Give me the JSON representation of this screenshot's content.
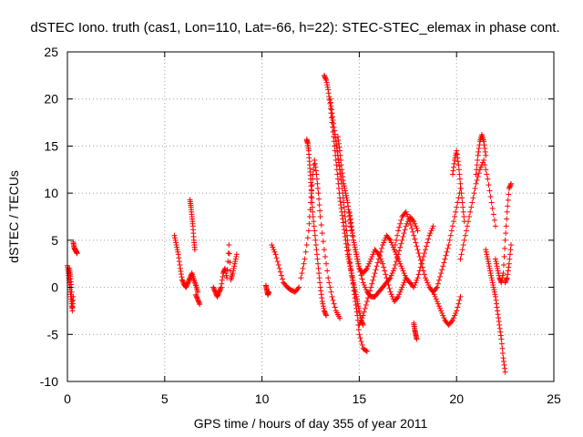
{
  "chart_data": {
    "type": "scatter",
    "title": "dSTEC Iono. truth (cas1, Lon=110, Lat=-66, h=22): STEC-STEC_elemax in phase cont.",
    "xlabel": "GPS time / hours of day 355 of year 2011",
    "ylabel": "dSTEC  / TECUs",
    "xlim": [
      0,
      25
    ],
    "ylim": [
      -10,
      25
    ],
    "xticks": [
      "0",
      "5",
      "10",
      "15",
      "20",
      "25"
    ],
    "yticks": [
      "-10",
      "-5",
      "0",
      "5",
      "10",
      "15",
      "20",
      "25"
    ],
    "grid": true,
    "marker": "+",
    "color": "#ff0000",
    "series": [
      {
        "x": [
          0.0,
          0.05,
          0.1,
          0.15,
          0.2,
          0.25,
          0.3
        ],
        "y": [
          2.3,
          1.5,
          0.5,
          -0.5,
          -1.5,
          -2.5,
          -1.0
        ]
      },
      {
        "x": [
          0.1,
          0.15,
          0.2,
          0.25
        ],
        "y": [
          2.0,
          1.2,
          0.0,
          -2.0
        ]
      },
      {
        "x": [
          0.3,
          0.35,
          0.4,
          0.45,
          0.5
        ],
        "y": [
          4.8,
          4.2,
          4.0,
          3.8,
          3.6
        ]
      },
      {
        "x": [
          5.5,
          5.6,
          5.7,
          5.8,
          5.9,
          6.0,
          6.1,
          6.2,
          6.3,
          6.4,
          6.5,
          6.6,
          6.7
        ],
        "y": [
          5.5,
          4.5,
          3.5,
          2.0,
          0.8,
          0.3,
          0.0,
          0.5,
          1.0,
          1.5,
          0.8,
          0.2,
          -0.5
        ]
      },
      {
        "x": [
          6.3,
          6.35,
          6.4,
          6.45,
          6.5,
          6.55
        ],
        "y": [
          9.3,
          8.5,
          7.5,
          6.5,
          5.0,
          4.0
        ]
      },
      {
        "x": [
          6.6,
          6.7,
          6.8
        ],
        "y": [
          -0.8,
          -1.3,
          -1.8
        ]
      },
      {
        "x": [
          7.5,
          7.6,
          7.7,
          7.8,
          7.9,
          8.0,
          8.1,
          8.2,
          8.3,
          8.4,
          8.5,
          8.6,
          8.7
        ],
        "y": [
          0.0,
          -0.5,
          -1.0,
          -0.5,
          0.0,
          1.5,
          2.0,
          1.0,
          4.5,
          0.8,
          1.5,
          2.5,
          3.5
        ]
      },
      {
        "x": [
          10.2,
          10.25,
          10.3,
          10.35
        ],
        "y": [
          0.2,
          -0.3,
          -0.8,
          -0.5
        ]
      },
      {
        "x": [
          10.5,
          10.7,
          10.9,
          11.1,
          11.3,
          11.5,
          11.7,
          11.9
        ],
        "y": [
          4.5,
          3.5,
          2.0,
          0.5,
          0.0,
          -0.3,
          -0.5,
          0.0
        ]
      },
      {
        "x": [
          12.0,
          12.2,
          12.4,
          12.5,
          12.6,
          12.7,
          12.8,
          12.9,
          13.0,
          13.2,
          13.4,
          13.6,
          13.8,
          14.0
        ],
        "y": [
          1.0,
          3.0,
          6.0,
          9.0,
          11.5,
          13.5,
          12.0,
          10.0,
          7.5,
          4.0,
          1.0,
          -1.0,
          -2.5,
          -3.3
        ]
      },
      {
        "x": [
          12.3,
          12.35,
          12.4,
          12.45,
          12.5,
          12.55,
          12.6,
          12.7,
          12.8,
          12.9,
          13.0,
          13.1,
          13.2,
          13.3
        ],
        "y": [
          15.7,
          15.3,
          14.5,
          13.0,
          11.5,
          10.0,
          8.0,
          6.0,
          4.0,
          2.0,
          0.0,
          -1.5,
          -2.5,
          -3.0
        ]
      },
      {
        "x": [
          13.2,
          13.3,
          13.4,
          13.5,
          13.6,
          13.7,
          13.8,
          13.9,
          14.0,
          14.1,
          14.2,
          14.3,
          14.4,
          14.5,
          14.6,
          14.7,
          14.8,
          14.9,
          15.0,
          15.1,
          15.2
        ],
        "y": [
          22.5,
          22.0,
          21.0,
          19.5,
          17.5,
          15.5,
          13.5,
          11.5,
          9.5,
          8.0,
          6.5,
          5.0,
          3.5,
          2.5,
          1.5,
          0.5,
          -0.5,
          -1.5,
          -2.5,
          -3.5,
          -4.0
        ]
      },
      {
        "x": [
          13.5,
          13.6,
          13.7,
          13.8,
          13.9,
          14.0,
          14.1,
          14.2,
          14.3,
          14.4,
          14.5,
          14.6,
          14.7,
          14.8,
          14.9,
          15.0,
          15.2,
          15.4
        ],
        "y": [
          20.0,
          18.5,
          17.0,
          15.5,
          14.0,
          12.5,
          11.0,
          9.0,
          7.0,
          5.0,
          3.0,
          1.5,
          0.0,
          -1.5,
          -3.0,
          -5.0,
          -6.5,
          -6.8
        ]
      },
      {
        "x": [
          13.9,
          14.0,
          14.1,
          14.2,
          14.3,
          14.4,
          14.5,
          14.6,
          14.8,
          15.0,
          15.2,
          15.4,
          15.6,
          15.8,
          16.0,
          16.2,
          16.4,
          16.6,
          16.8,
          17.0,
          17.2,
          17.4,
          17.6,
          17.8,
          18.0
        ],
        "y": [
          16.0,
          14.5,
          12.5,
          11.0,
          10.0,
          9.0,
          7.5,
          6.0,
          4.0,
          2.0,
          0.5,
          -0.5,
          -1.0,
          -1.0,
          -0.5,
          0.0,
          0.5,
          1.0,
          2.0,
          3.5,
          5.0,
          6.5,
          7.5,
          7.0,
          6.0
        ]
      },
      {
        "x": [
          14.5,
          14.6,
          14.7,
          14.8,
          14.9,
          15.0,
          15.2,
          15.4,
          15.6,
          15.8,
          16.0,
          16.2,
          16.4,
          16.6,
          16.8,
          17.0,
          17.2,
          17.4
        ],
        "y": [
          8.0,
          6.5,
          5.0,
          4.0,
          3.0,
          2.0,
          1.5,
          2.0,
          3.0,
          4.0,
          3.5,
          2.5,
          1.0,
          -0.5,
          -1.5,
          -1.0,
          0.0,
          1.0
        ]
      },
      {
        "x": [
          15.0,
          15.2,
          15.4,
          15.6,
          15.8,
          16.0,
          16.2,
          16.4,
          16.6,
          16.8,
          17.0,
          17.2,
          17.4,
          17.6,
          17.8,
          18.0,
          18.2,
          18.4,
          18.6,
          18.8
        ],
        "y": [
          -4.0,
          -3.0,
          -1.5,
          0.0,
          1.5,
          3.0,
          4.5,
          5.5,
          5.0,
          4.0,
          3.0,
          2.0,
          1.0,
          0.5,
          0.0,
          1.0,
          2.5,
          4.0,
          5.5,
          6.5
        ]
      },
      {
        "x": [
          16.8,
          17.0,
          17.2,
          17.4,
          17.6,
          17.8,
          18.0,
          18.2,
          18.4,
          18.6,
          18.8,
          19.0,
          19.2,
          19.4,
          19.6,
          19.8,
          20.0,
          20.2
        ],
        "y": [
          4.0,
          6.0,
          7.5,
          8.0,
          7.0,
          5.5,
          4.0,
          2.5,
          1.0,
          0.0,
          -0.5,
          0.0,
          1.5,
          3.0,
          4.5,
          6.5,
          8.5,
          10.5
        ]
      },
      {
        "x": [
          17.8,
          17.85,
          17.9,
          17.95
        ],
        "y": [
          -3.8,
          -4.5,
          -5.0,
          -5.5
        ]
      },
      {
        "x": [
          18.8,
          19.0,
          19.2,
          19.4,
          19.6,
          19.8,
          20.0,
          20.2
        ],
        "y": [
          -0.5,
          -1.5,
          -2.5,
          -3.5,
          -4.0,
          -3.5,
          -2.5,
          -1.0
        ]
      },
      {
        "x": [
          19.8,
          19.9,
          20.0,
          20.1,
          20.2,
          20.3,
          20.4
        ],
        "y": [
          12.0,
          13.5,
          14.5,
          13.0,
          11.0,
          9.0,
          7.0
        ]
      },
      {
        "x": [
          20.2,
          20.4,
          20.6,
          20.8,
          21.0,
          21.2,
          21.4,
          21.6,
          21.8,
          22.0
        ],
        "y": [
          3.0,
          5.0,
          7.0,
          9.0,
          11.0,
          12.5,
          13.5,
          11.5,
          9.0,
          6.5
        ]
      },
      {
        "x": [
          21.0,
          21.1,
          21.2,
          21.3,
          21.4,
          21.5
        ],
        "y": [
          12.0,
          14.0,
          15.5,
          16.2,
          15.5,
          14.0
        ]
      },
      {
        "x": [
          21.5,
          21.6,
          21.7,
          21.8,
          21.9,
          22.0,
          22.1,
          22.2,
          22.3,
          22.4,
          22.5
        ],
        "y": [
          4.0,
          3.0,
          2.0,
          1.0,
          0.0,
          -1.0,
          -2.5,
          -4.0,
          -5.5,
          -7.5,
          -9.0
        ]
      },
      {
        "x": [
          22.0,
          22.1,
          22.2,
          22.3,
          22.4,
          22.5,
          22.6,
          22.7,
          22.8
        ],
        "y": [
          3.0,
          2.0,
          1.0,
          0.5,
          1.5,
          5.0,
          8.0,
          10.5,
          11.0
        ]
      },
      {
        "x": [
          22.5,
          22.6,
          22.7,
          22.8
        ],
        "y": [
          0.5,
          1.0,
          2.5,
          4.5
        ]
      }
    ]
  }
}
